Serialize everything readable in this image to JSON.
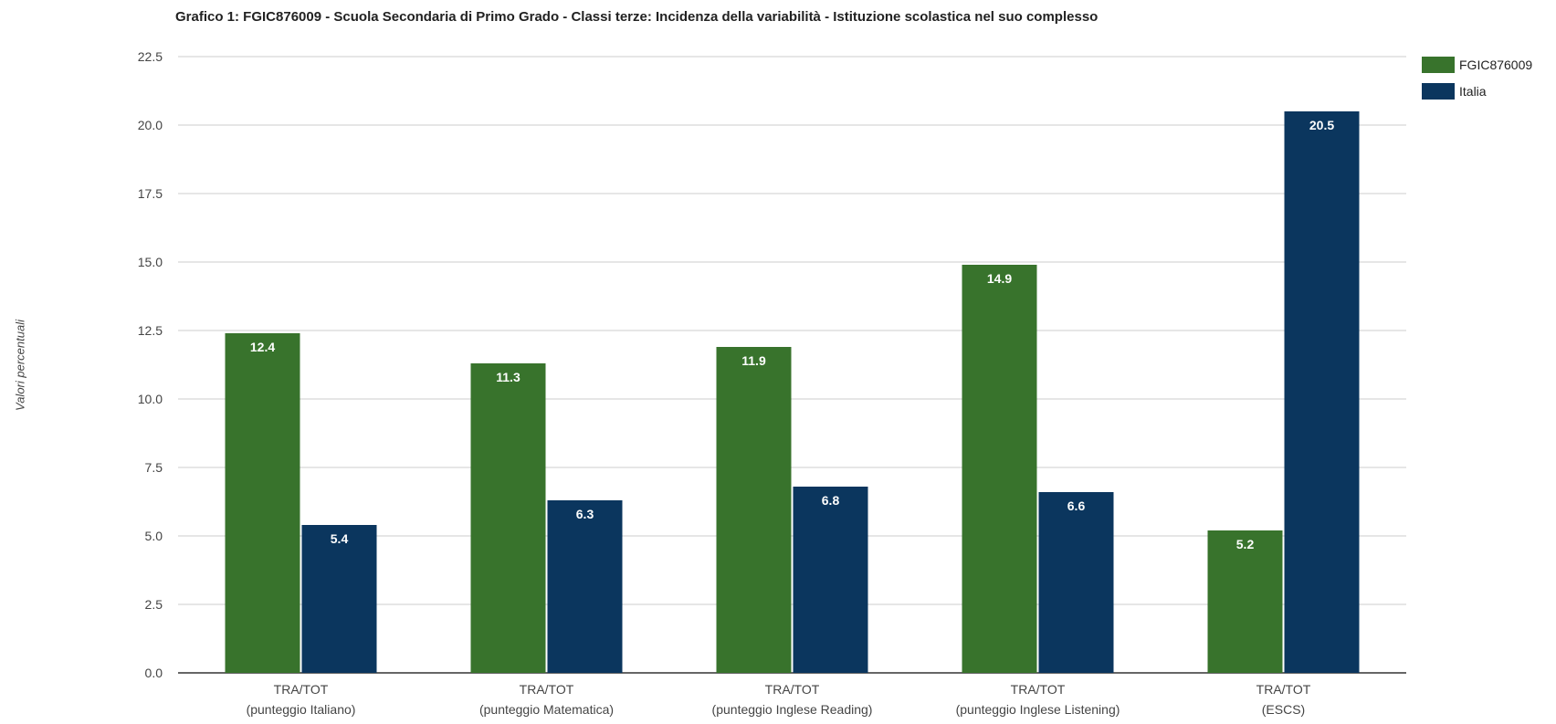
{
  "chart_data": {
    "type": "bar",
    "title": "Grafico 1: FGIC876009 - Scuola Secondaria di Primo Grado - Classi terze: Incidenza della variabilità - Istituzione scolastica nel suo complesso",
    "ylabel": "Valori percentuali",
    "xlabel": "",
    "ylim": [
      0,
      22.5
    ],
    "yticks": [
      "0.0",
      "2.5",
      "5.0",
      "7.5",
      "10.0",
      "12.5",
      "15.0",
      "17.5",
      "20.0",
      "22.5"
    ],
    "categories": [
      [
        "TRA/TOT",
        "(punteggio Italiano)"
      ],
      [
        "TRA/TOT",
        "(punteggio Matematica)"
      ],
      [
        "TRA/TOT",
        "(punteggio Inglese Reading)"
      ],
      [
        "TRA/TOT",
        "(punteggio Inglese Listening)"
      ],
      [
        "TRA/TOT",
        "(ESCS)"
      ]
    ],
    "series": [
      {
        "name": "FGIC876009",
        "color": "#38732c",
        "values": [
          12.4,
          11.3,
          11.9,
          14.9,
          5.2
        ]
      },
      {
        "name": "Italia",
        "color": "#0b365e",
        "values": [
          5.4,
          6.3,
          6.8,
          6.6,
          20.5
        ]
      }
    ],
    "grid": true,
    "legend": "top-right"
  }
}
